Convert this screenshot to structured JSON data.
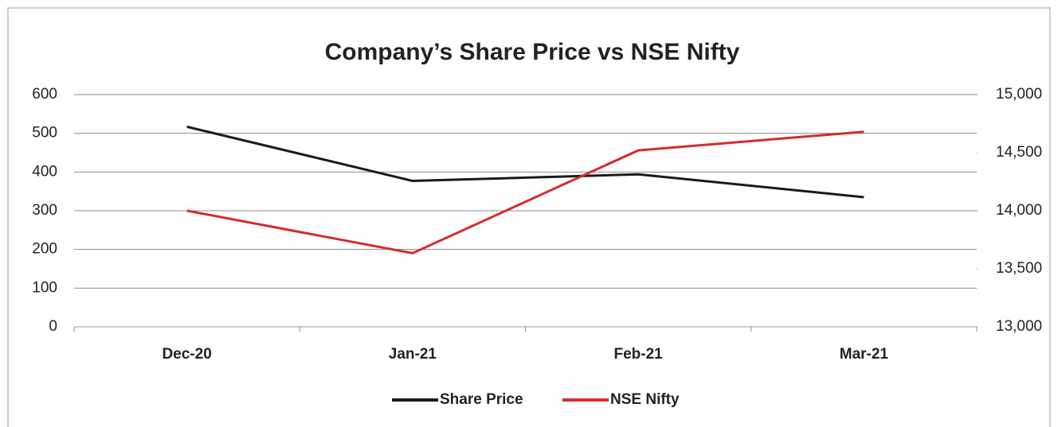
{
  "chart_data": {
    "type": "line",
    "title": "Company’s Share Price vs NSE Nifty",
    "categories": [
      "Dec-20",
      "Jan-21",
      "Feb-21",
      "Mar-21"
    ],
    "series": [
      {
        "name": "Share Price",
        "color": "#1a1a1a",
        "values": [
          517,
          377,
          394,
          335
        ]
      },
      {
        "name": "NSE Nifty",
        "color": "#d62b2b",
        "axis": "y2",
        "values": [
          14000,
          13634,
          14520,
          14680
        ]
      }
    ],
    "ylim": [
      0,
      600
    ],
    "yticks": [
      0,
      100,
      200,
      300,
      400,
      500,
      600
    ],
    "y2lim": [
      13000,
      15000
    ],
    "y2ticks": [
      {
        "value": 13000,
        "label": "13,000"
      },
      {
        "value": 13500,
        "label": "13,500"
      },
      {
        "value": 14000,
        "label": "14,000"
      },
      {
        "value": 14500,
        "label": "14,500"
      },
      {
        "value": 15000,
        "label": "15,000"
      }
    ],
    "grid": true,
    "legend": "bottom"
  }
}
